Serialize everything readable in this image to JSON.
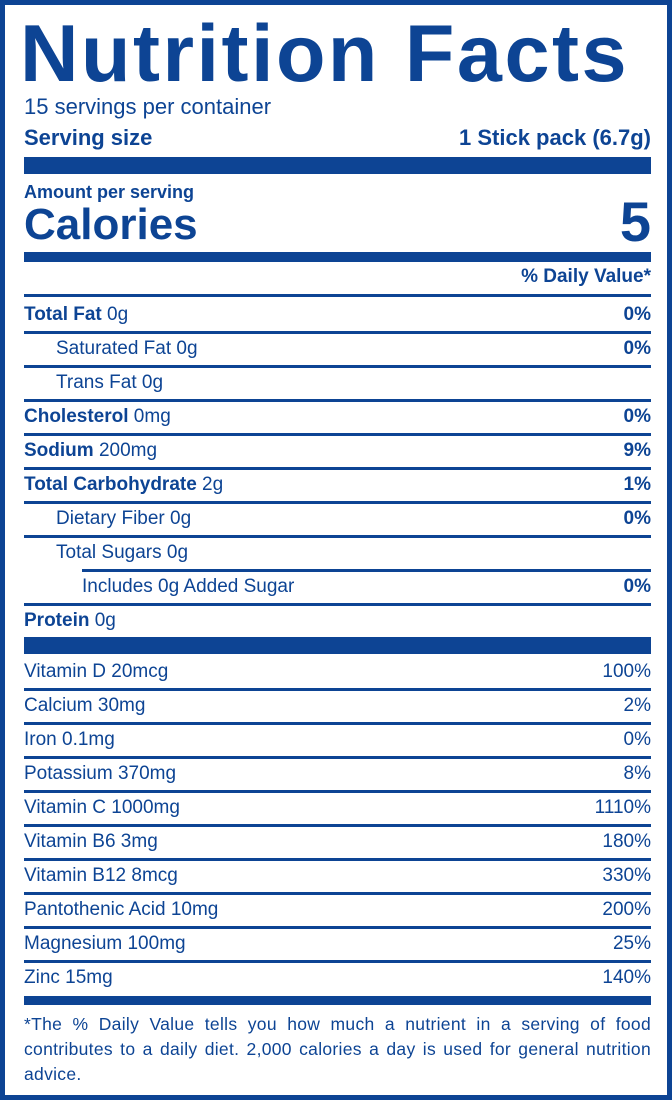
{
  "label": {
    "title": "Nutrition Facts",
    "servings_per_container": "15 servings per container",
    "serving_size_label": "Serving size",
    "serving_size_value": "1 Stick pack (6.7g)",
    "amount_per_serving": "Amount per serving",
    "calories_label": "Calories",
    "calories_value": "5",
    "daily_value_header": "% Daily Value*",
    "nutrients": [
      {
        "name": "Total Fat",
        "amount": " 0g",
        "dv": "0%"
      },
      {
        "name": "Saturated Fat",
        "amount": " 0g",
        "dv": "0%"
      },
      {
        "name": "Trans Fat",
        "amount": " 0g",
        "dv": ""
      },
      {
        "name": "Cholesterol",
        "amount": " 0mg",
        "dv": "0%"
      },
      {
        "name": "Sodium",
        "amount": " 200mg",
        "dv": "9%"
      },
      {
        "name": "Total Carbohydrate",
        "amount": " 2g",
        "dv": "1%"
      },
      {
        "name": "Dietary Fiber",
        "amount": " 0g",
        "dv": "0%"
      },
      {
        "name": "Total Sugars",
        "amount": " 0g",
        "dv": ""
      },
      {
        "name": "Includes 0g Added Sugar",
        "amount": "",
        "dv": "0%"
      },
      {
        "name": "Protein",
        "amount": " 0g",
        "dv": ""
      }
    ],
    "vitamins": [
      {
        "name": "Vitamin D 20mcg",
        "dv": "100%"
      },
      {
        "name": "Calcium 30mg",
        "dv": "2%"
      },
      {
        "name": "Iron 0.1mg",
        "dv": "0%"
      },
      {
        "name": "Potassium 370mg",
        "dv": "8%"
      },
      {
        "name": "Vitamin C 1000mg",
        "dv": "1110%"
      },
      {
        "name": "Vitamin B6 3mg",
        "dv": "180%"
      },
      {
        "name": "Vitamin B12 8mcg",
        "dv": "330%"
      },
      {
        "name": "Pantothenic Acid 10mg",
        "dv": "200%"
      },
      {
        "name": "Magnesium 100mg",
        "dv": "25%"
      },
      {
        "name": "Zinc 15mg",
        "dv": "140%"
      }
    ],
    "footnote": "*The % Daily Value tells you how much a nutrient in a serving of food contributes to a daily diet. 2,000 calories a day is used for general nutrition advice.",
    "color": "#0d4494"
  }
}
